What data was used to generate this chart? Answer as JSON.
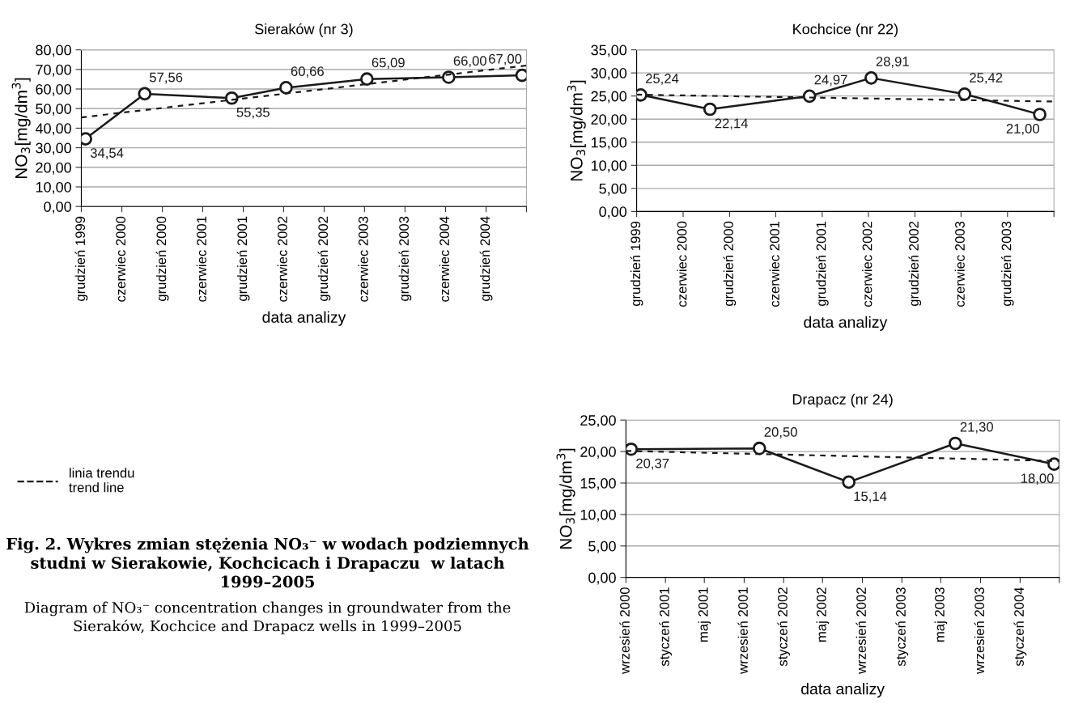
{
  "chart_data": [
    {
      "type": "line",
      "title": "Sieraków (nr 3)",
      "xlabel": "data analizy",
      "ylabel": "NO$_{3}$[mg/dm$^{3}$]",
      "xlim": [
        "1999-12-01",
        "2005-06-01"
      ],
      "xticks": [
        {
          "value": "1999-12-01",
          "label": "grudzień 1999"
        },
        {
          "value": "2000-06-01",
          "label": "czerwiec 2000"
        },
        {
          "value": "2000-12-01",
          "label": "grudzień 2000"
        },
        {
          "value": "2001-06-01",
          "label": "czerwiec 2001"
        },
        {
          "value": "2001-12-01",
          "label": "grudzień 2001"
        },
        {
          "value": "2002-06-01",
          "label": "czerwiec 2002"
        },
        {
          "value": "2002-12-01",
          "label": "grudzień 2002"
        },
        {
          "value": "2003-06-01",
          "label": "czerwiec 2003"
        },
        {
          "value": "2003-12-01",
          "label": "grudzień 2003"
        },
        {
          "value": "2004-06-01",
          "label": "czerwiec 2004"
        },
        {
          "value": "2004-12-01",
          "label": "grudzień 2004"
        },
        {
          "value": "2005-06-01",
          "label": null
        }
      ],
      "ylim": [
        0,
        80
      ],
      "yticks": [
        {
          "value": 0,
          "label": "0,00"
        },
        {
          "value": 10,
          "label": "10,00"
        },
        {
          "value": 20,
          "label": "20,00"
        },
        {
          "value": 30,
          "label": "30,00"
        },
        {
          "value": 40,
          "label": "40,00"
        },
        {
          "value": 50,
          "label": "50,00"
        },
        {
          "value": 60,
          "label": "60,00"
        },
        {
          "value": 70,
          "label": "70,00"
        },
        {
          "value": 80,
          "label": "80,00"
        }
      ],
      "grid": "y",
      "legend": "left",
      "series": [
        {
          "color": "#1a1a1a",
          "marker": "circle",
          "line_style": "solid",
          "x": [
            "1999-12-20",
            "2000-09-12",
            "2001-10-10",
            "2002-06-12",
            "2003-06-12",
            "2004-06-15",
            "2005-05-12"
          ],
          "values": [
            34.54,
            57.56,
            55.35,
            60.66,
            65.09,
            66.0,
            67.0
          ],
          "value_labels": [
            "34,54",
            "57,56",
            "55,35",
            "60,66",
            "65,09",
            "66,00",
            "67,00"
          ]
        },
        {
          "name": "linia trendu\ntrend line",
          "color": "#1a1a1a",
          "marker": "none",
          "line_style": "dashed",
          "x": [
            "1999-12-01",
            "2005-06-01"
          ],
          "values": [
            45.5,
            72
          ]
        }
      ],
      "annotations": [
        "Fig. 2. Wykres zmian stężenia NO₃⁻ w wodach podziemnych studni w Sierakowie, Kochcicach i Drapaczu  w latach 1999–2005",
        "Diagram of NO₃⁻ concentration changes in groundwater from the Sieraków, Kochcice and Drapacz wells in 1999–2005"
      ]
    },
    {
      "type": "line",
      "title": "Kochcice (nr 22)",
      "xlabel": "data analizy",
      "ylabel": "NO$_{3}$[mg/dm$^{3}$]",
      "xlim": [
        "1999-12-01",
        "2004-06-01"
      ],
      "xticks": [
        {
          "value": "1999-12-01",
          "label": "grudzień 1999"
        },
        {
          "value": "2000-06-01",
          "label": "czerwiec 2000"
        },
        {
          "value": "2000-12-01",
          "label": "grudzień 2000"
        },
        {
          "value": "2001-06-01",
          "label": "czerwiec 2001"
        },
        {
          "value": "2001-12-01",
          "label": "grudzień 2001"
        },
        {
          "value": "2002-06-01",
          "label": "czerwiec 2002"
        },
        {
          "value": "2002-12-01",
          "label": "grudzień 2002"
        },
        {
          "value": "2003-06-01",
          "label": "czerwiec 2003"
        },
        {
          "value": "2003-12-01",
          "label": "grudzień 2003"
        },
        {
          "value": "2004-06-01",
          "label": null
        }
      ],
      "ylim": [
        0,
        35
      ],
      "yticks": [
        {
          "value": 0,
          "label": "0,00"
        },
        {
          "value": 5,
          "label": "5,00"
        },
        {
          "value": 10,
          "label": "10,00"
        },
        {
          "value": 15,
          "label": "15,00"
        },
        {
          "value": 20,
          "label": "20,00"
        },
        {
          "value": 25,
          "label": "25,00"
        },
        {
          "value": 30,
          "label": "30,00"
        },
        {
          "value": 35,
          "label": "35,00"
        }
      ],
      "grid": "y",
      "series": [
        {
          "color": "#1a1a1a",
          "marker": "circle",
          "line_style": "solid",
          "x": [
            "1999-12-17",
            "2000-09-15",
            "2001-10-12",
            "2002-06-12",
            "2003-06-15",
            "2004-04-06"
          ],
          "values": [
            25.24,
            22.14,
            24.97,
            28.91,
            25.42,
            21.0
          ],
          "value_labels": [
            "25,24",
            "22,14",
            "24,97",
            "28,91",
            "25,42",
            "21,00"
          ]
        },
        {
          "color": "#1a1a1a",
          "marker": "none",
          "line_style": "dashed",
          "x": [
            "1999-12-01",
            "2004-06-01"
          ],
          "values": [
            25.3,
            23.8
          ]
        }
      ]
    },
    {
      "type": "line",
      "title": "Drapacz (nr 24)",
      "xlabel": "data analizy",
      "ylabel": "NO$_{3}$[mg/dm$^{3}$]",
      "xlim": [
        "2000-09-01",
        "2004-05-01"
      ],
      "xticks": [
        {
          "value": "2000-09-01",
          "label": "wrzesień 2000"
        },
        {
          "value": "2001-01-01",
          "label": "styczeń 2001"
        },
        {
          "value": "2001-05-01",
          "label": "maj 2001"
        },
        {
          "value": "2001-09-01",
          "label": "wrzesień 2001"
        },
        {
          "value": "2002-01-01",
          "label": "styczeń 2002"
        },
        {
          "value": "2002-05-01",
          "label": "maj 2002"
        },
        {
          "value": "2002-09-01",
          "label": "wrzesień 2002"
        },
        {
          "value": "2003-01-01",
          "label": "styczeń 2003"
        },
        {
          "value": "2003-05-01",
          "label": "maj 2003"
        },
        {
          "value": "2003-09-01",
          "label": "wrzesień 2003"
        },
        {
          "value": "2004-01-01",
          "label": "styczeń 2004"
        },
        {
          "value": "2004-05-01",
          "label": null
        }
      ],
      "ylim": [
        0,
        25
      ],
      "yticks": [
        {
          "value": 0,
          "label": "0,00"
        },
        {
          "value": 5,
          "label": "5,00"
        },
        {
          "value": 10,
          "label": "10,00"
        },
        {
          "value": 15,
          "label": "15,00"
        },
        {
          "value": 20,
          "label": "20,00"
        },
        {
          "value": 25,
          "label": "25,00"
        }
      ],
      "grid": "y",
      "series": [
        {
          "color": "#1a1a1a",
          "marker": "circle",
          "line_style": "solid",
          "x": [
            "2000-09-17",
            "2001-10-18",
            "2002-07-21",
            "2003-06-15",
            "2004-04-15"
          ],
          "values": [
            20.37,
            20.5,
            15.14,
            21.3,
            18.0
          ],
          "value_labels": [
            "20,37",
            "20,50",
            "15,14",
            "21,30",
            "18,00"
          ]
        },
        {
          "color": "#1a1a1a",
          "marker": "none",
          "line_style": "dashed",
          "x": [
            "2000-09-01",
            "2004-05-01"
          ],
          "values": [
            20.1,
            18.5
          ]
        }
      ]
    }
  ]
}
